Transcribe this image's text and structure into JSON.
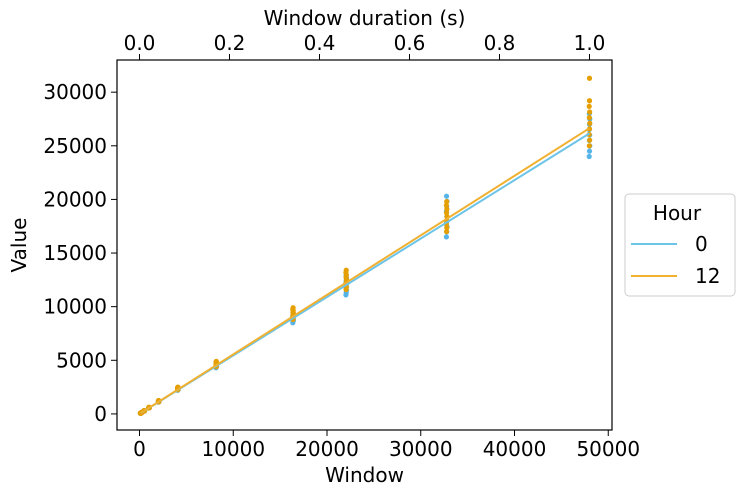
{
  "chart_data": {
    "type": "scatter",
    "title": "",
    "xlabel": "Window",
    "ylabel": "Value",
    "x2label": "Window duration (s)",
    "xlim": [
      -2400,
      50400
    ],
    "ylim": [
      -1500,
      33000
    ],
    "x2lim": [
      -0.05,
      1.05
    ],
    "xticks": [
      0,
      10000,
      20000,
      30000,
      40000,
      50000
    ],
    "xtick_labels": [
      "0",
      "10000",
      "20000",
      "30000",
      "40000",
      "50000"
    ],
    "yticks": [
      0,
      5000,
      10000,
      15000,
      20000,
      25000,
      30000
    ],
    "ytick_labels": [
      "0",
      "5000",
      "10000",
      "15000",
      "20000",
      "25000",
      "30000"
    ],
    "x2ticks": [
      0.0,
      0.2,
      0.4,
      0.6,
      0.8,
      1.0
    ],
    "x2tick_labels": [
      "0.0",
      "0.2",
      "0.4",
      "0.6",
      "0.8",
      "1.0"
    ],
    "grid": false,
    "legend": {
      "title": "Hour",
      "position": "right-outside"
    },
    "windows": [
      128,
      256,
      512,
      1024,
      2048,
      4096,
      8192,
      16384,
      22050,
      32768,
      48000
    ],
    "series": [
      {
        "name": "0",
        "line_color": "#6cc4e8",
        "point_color": "#56b4e9",
        "fit": {
          "slope": 0.545,
          "intercept": 0
        },
        "points": [
          {
            "x": 128,
            "min": 60,
            "max": 80
          },
          {
            "x": 256,
            "min": 130,
            "max": 150
          },
          {
            "x": 512,
            "min": 270,
            "max": 300
          },
          {
            "x": 1024,
            "min": 550,
            "max": 600
          },
          {
            "x": 2048,
            "min": 1100,
            "max": 1200
          },
          {
            "x": 4096,
            "min": 2200,
            "max": 2450
          },
          {
            "x": 8192,
            "min": 4300,
            "max": 4850
          },
          {
            "x": 16384,
            "min": 8500,
            "max": 9500
          },
          {
            "x": 22050,
            "min": 11100,
            "max": 12900
          },
          {
            "x": 32768,
            "min": 16500,
            "max": 20300
          },
          {
            "x": 48000,
            "min": 24000,
            "max": 28000
          }
        ]
      },
      {
        "name": "12",
        "line_color": "#f0b030",
        "point_color": "#e69f00",
        "fit": {
          "slope": 0.555,
          "intercept": 0
        },
        "points": [
          {
            "x": 128,
            "min": 60,
            "max": 85
          },
          {
            "x": 256,
            "min": 130,
            "max": 155
          },
          {
            "x": 512,
            "min": 270,
            "max": 310
          },
          {
            "x": 1024,
            "min": 560,
            "max": 620
          },
          {
            "x": 2048,
            "min": 1120,
            "max": 1250
          },
          {
            "x": 4096,
            "min": 2250,
            "max": 2500
          },
          {
            "x": 8192,
            "min": 4400,
            "max": 4900
          },
          {
            "x": 16384,
            "min": 8800,
            "max": 9900
          },
          {
            "x": 22050,
            "min": 11600,
            "max": 13400
          },
          {
            "x": 32768,
            "min": 17000,
            "max": 19800
          },
          {
            "x": 48000,
            "min": 25000,
            "max": 29200
          }
        ],
        "outliers": [
          {
            "x": 48000,
            "y": 31300
          }
        ]
      }
    ]
  }
}
